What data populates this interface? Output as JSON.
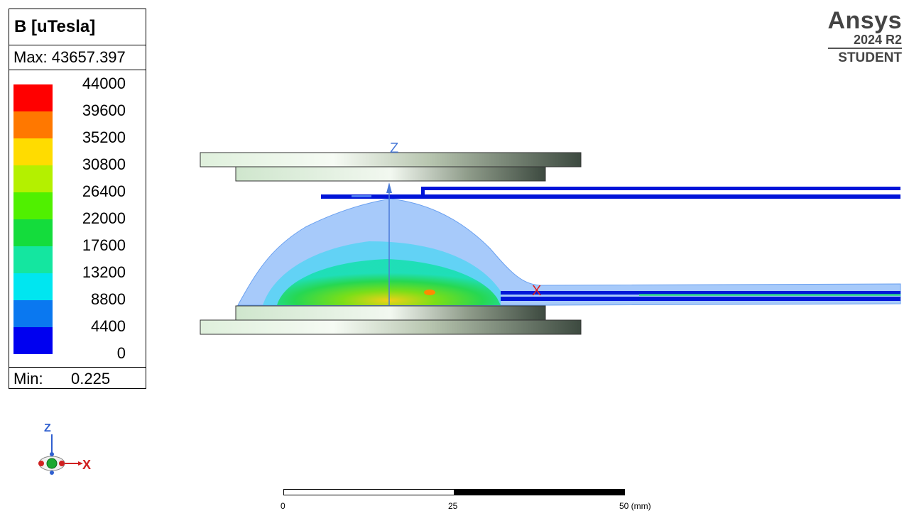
{
  "legend": {
    "title": "B [uTesla]",
    "max_label": "Max: 43657.397",
    "min_label": "Min:",
    "min_value": "0.225",
    "ticks": [
      "44000",
      "39600",
      "35200",
      "30800",
      "26400",
      "22000",
      "17600",
      "13200",
      "8800",
      "4400",
      "0"
    ],
    "colors": [
      "#ff0000",
      "#ff7800",
      "#ffdc00",
      "#b4f000",
      "#50f000",
      "#14dc3c",
      "#14e6a0",
      "#00e6f0",
      "#0a78f0",
      "#0000f0"
    ]
  },
  "brand": {
    "name": "Ansys",
    "version": "2024 R2",
    "edition": "STUDENT"
  },
  "viewport": {
    "axis_labels": {
      "z": "Z",
      "x": "X"
    }
  },
  "triad": {
    "z": "Z",
    "x": "X"
  },
  "scale_bar": {
    "labels": [
      "0",
      "25",
      "50 (mm)"
    ]
  }
}
